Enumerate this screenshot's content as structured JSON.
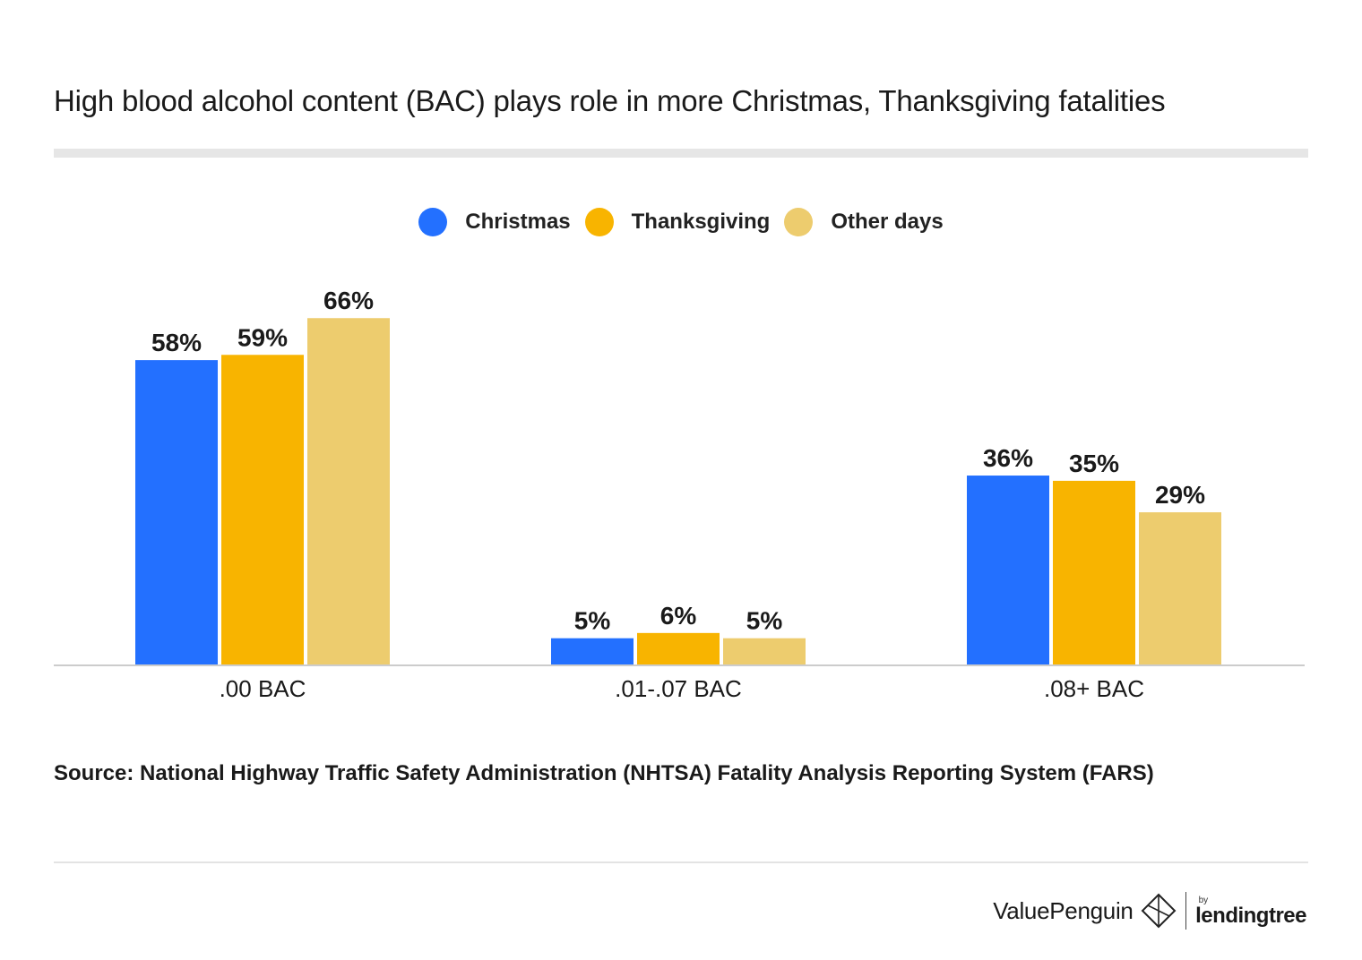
{
  "title": "High blood alcohol content (BAC) plays role in more Christmas, Thanksgiving fatalities",
  "source": "Source: National Highway Traffic Safety Administration (NHTSA) Fatality Analysis Reporting System (FARS)",
  "brand": {
    "primary": "ValuePenguin",
    "by": "by",
    "secondary": "lendingtree"
  },
  "colors": {
    "christmas": "#2370FF",
    "thanksgiving": "#F8B400",
    "other": "#EDCC6E",
    "axis": "#cccccc"
  },
  "chart_data": {
    "type": "bar",
    "title": "High blood alcohol content (BAC) plays role in more Christmas, Thanksgiving fatalities",
    "categories": [
      ".00 BAC",
      ".01-.07 BAC",
      ".08+ BAC"
    ],
    "series": [
      {
        "name": "Christmas",
        "values": [
          58,
          5,
          36
        ],
        "labels": [
          "58%",
          "5%",
          "36%"
        ],
        "color": "#2370FF"
      },
      {
        "name": "Thanksgiving",
        "values": [
          59,
          6,
          35
        ],
        "labels": [
          "59%",
          "6%",
          "35%"
        ],
        "color": "#F8B400"
      },
      {
        "name": "Other days",
        "values": [
          66,
          5,
          29
        ],
        "labels": [
          "66%",
          "5%",
          "29%"
        ],
        "color": "#EDCC6E"
      }
    ],
    "xlabel": "",
    "ylabel": "",
    "ylim": [
      0,
      100
    ],
    "grid": false,
    "legend": "top-center"
  }
}
